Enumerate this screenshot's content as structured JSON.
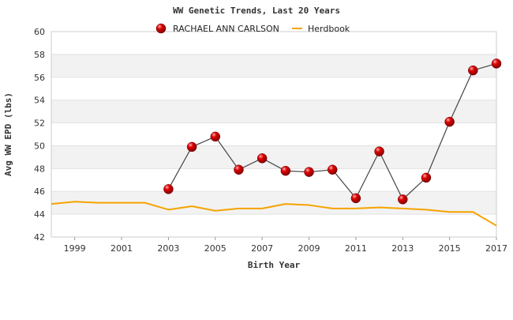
{
  "chart_data": {
    "type": "line",
    "title": "WW Genetic Trends, Last 20 Years",
    "xlabel": "Birth Year",
    "ylabel": "Avg WW EPD (lbs)",
    "xlim": [
      1998,
      2017
    ],
    "ylim": [
      42,
      60
    ],
    "x_ticks": [
      1999,
      2001,
      2003,
      2005,
      2007,
      2009,
      2011,
      2013,
      2015,
      2017
    ],
    "y_ticks": [
      42,
      44,
      46,
      48,
      50,
      52,
      54,
      56,
      58,
      60
    ],
    "grid": "horizontal alternating bands",
    "legend_position": "top-center",
    "series": [
      {
        "name": "RACHAEL ANN CARLSON",
        "style": "line-with-markers",
        "color": "#cc0000",
        "line_color": "#444444",
        "points": [
          [
            2003,
            46.2
          ],
          [
            2004,
            49.9
          ],
          [
            2005,
            50.8
          ],
          [
            2006,
            47.9
          ],
          [
            2007,
            48.9
          ],
          [
            2008,
            47.8
          ],
          [
            2009,
            47.7
          ],
          [
            2010,
            47.9
          ],
          [
            2011,
            45.4
          ],
          [
            2012,
            49.5
          ],
          [
            2013,
            45.3
          ],
          [
            2014,
            47.2
          ],
          [
            2015,
            52.1
          ],
          [
            2016,
            56.6
          ],
          [
            2017,
            57.2
          ]
        ]
      },
      {
        "name": "Herdbook",
        "style": "line",
        "color": "#f5a300",
        "points": [
          [
            1998,
            44.9
          ],
          [
            1999,
            45.1
          ],
          [
            2000,
            45.0
          ],
          [
            2001,
            45.0
          ],
          [
            2002,
            45.0
          ],
          [
            2003,
            44.4
          ],
          [
            2004,
            44.7
          ],
          [
            2005,
            44.3
          ],
          [
            2006,
            44.5
          ],
          [
            2007,
            44.5
          ],
          [
            2008,
            44.9
          ],
          [
            2009,
            44.8
          ],
          [
            2010,
            44.5
          ],
          [
            2011,
            44.5
          ],
          [
            2012,
            44.6
          ],
          [
            2013,
            44.5
          ],
          [
            2014,
            44.4
          ],
          [
            2015,
            44.2
          ],
          [
            2016,
            44.2
          ],
          [
            2017,
            43.0
          ]
        ]
      }
    ]
  }
}
